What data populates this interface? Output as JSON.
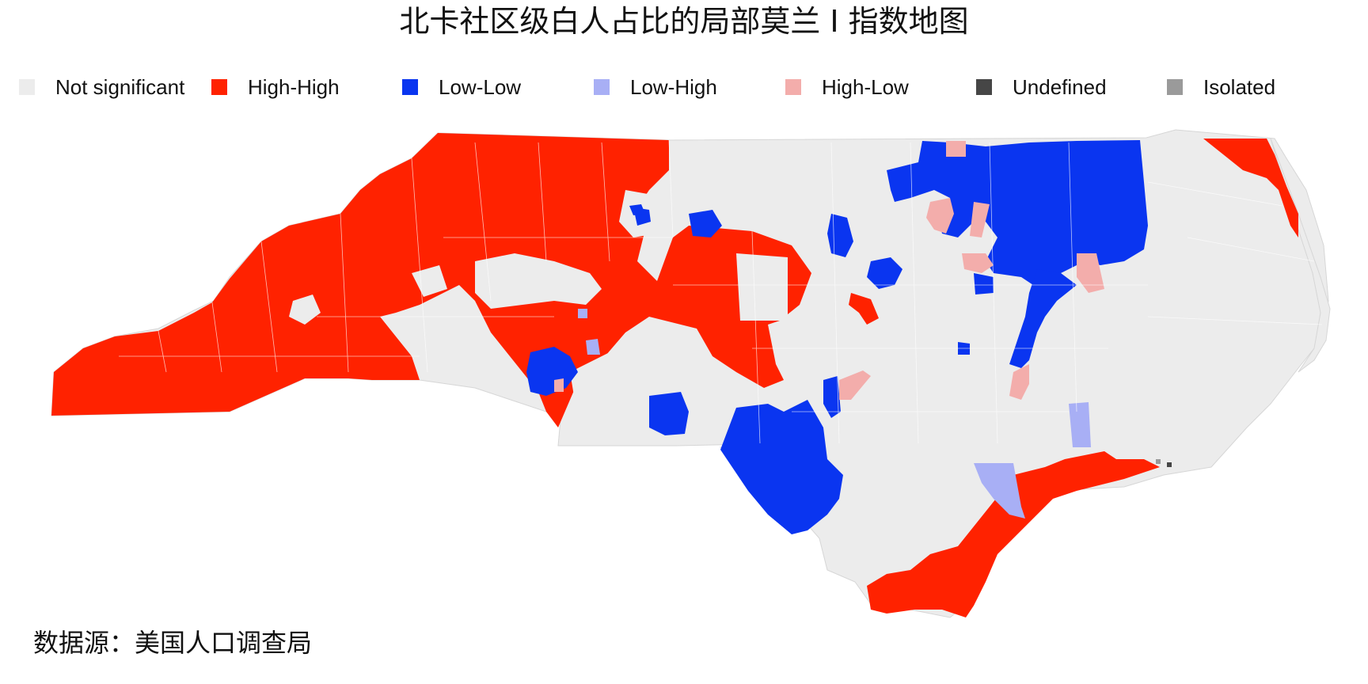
{
  "title": "北卡社区级白人占比的局部莫兰 I 指数地图",
  "caption": "数据源：美国人口调查局",
  "legend": [
    {
      "label": "Not significant",
      "color": "#ececec"
    },
    {
      "label": "High-High",
      "color": "#ff2200"
    },
    {
      "label": "Low-Low",
      "color": "#0a35f0"
    },
    {
      "label": "Low-High",
      "color": "#a8aff5"
    },
    {
      "label": "High-Low",
      "color": "#f3adab"
    },
    {
      "label": "Undefined",
      "color": "#464646"
    },
    {
      "label": "Isolated",
      "color": "#9a9a9a"
    }
  ],
  "colors": {
    "background": "#ffffff",
    "boundary": "#ffffff",
    "not_significant": "#ececec",
    "high_high": "#ff2200",
    "low_low": "#0a35f0",
    "low_high": "#a8aff5",
    "high_low": "#f3adab",
    "undefined": "#464646",
    "isolated": "#9a9a9a"
  }
}
